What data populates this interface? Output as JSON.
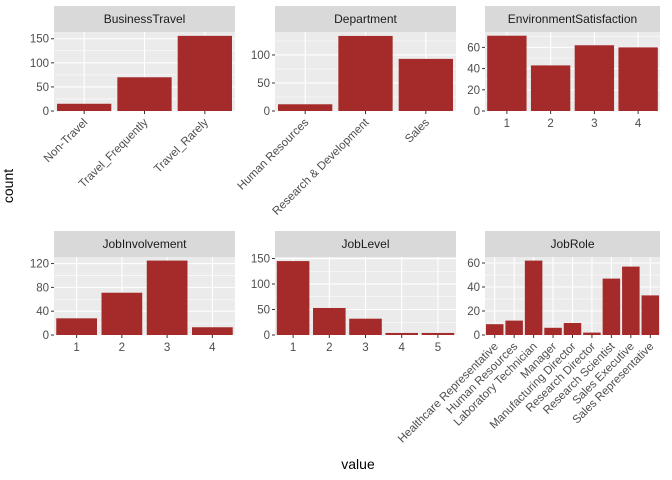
{
  "figure": {
    "xlabel": "value",
    "ylabel": "count",
    "bar_color": "#a52a2a",
    "panel_bg": "#ebebeb",
    "strip_bg": "#d9d9d9",
    "grid_color": "#ffffff"
  },
  "chart_data": [
    {
      "type": "bar",
      "title": "BusinessTravel",
      "categories": [
        "Non-Travel",
        "Travel_Frequently",
        "Travel_Rarely"
      ],
      "values": [
        15,
        70,
        156
      ],
      "yticks": [
        0,
        50,
        100,
        150
      ],
      "ylim": [
        0,
        164
      ],
      "xlabel_angle": 45
    },
    {
      "type": "bar",
      "title": "Department",
      "categories": [
        "Human Resources",
        "Research & Development",
        "Sales"
      ],
      "values": [
        12,
        134,
        93
      ],
      "yticks": [
        0,
        50,
        100
      ],
      "ylim": [
        0,
        141
      ],
      "xlabel_angle": 45
    },
    {
      "type": "bar",
      "title": "EnvironmentSatisfaction",
      "categories": [
        "1",
        "2",
        "3",
        "4"
      ],
      "values": [
        71,
        43,
        62,
        60
      ],
      "yticks": [
        0,
        20,
        40,
        60
      ],
      "ylim": [
        0,
        74.5
      ],
      "xlabel_angle": 0
    },
    {
      "type": "bar",
      "title": "JobInvolvement",
      "categories": [
        "1",
        "2",
        "3",
        "4"
      ],
      "values": [
        28,
        71,
        125,
        13
      ],
      "yticks": [
        0,
        40,
        80,
        120
      ],
      "ylim": [
        0,
        131
      ],
      "xlabel_angle": 0
    },
    {
      "type": "bar",
      "title": "JobLevel",
      "categories": [
        "1",
        "2",
        "3",
        "4",
        "5"
      ],
      "values": [
        145,
        53,
        32,
        4,
        4
      ],
      "yticks": [
        0,
        50,
        100,
        150
      ],
      "ylim": [
        0,
        153
      ],
      "xlabel_angle": 0
    },
    {
      "type": "bar",
      "title": "JobRole",
      "categories": [
        "Healthcare Representative",
        "Human Resources",
        "Laboratory Technician",
        "Manager",
        "Manufacturing Director",
        "Research Director",
        "Research Scientist",
        "Sales Executive",
        "Sales Representative"
      ],
      "values": [
        9,
        12,
        62,
        6,
        10,
        2,
        47,
        57,
        33
      ],
      "yticks": [
        0,
        20,
        40,
        60
      ],
      "ylim": [
        0,
        65
      ],
      "xlabel_angle": 45
    }
  ]
}
